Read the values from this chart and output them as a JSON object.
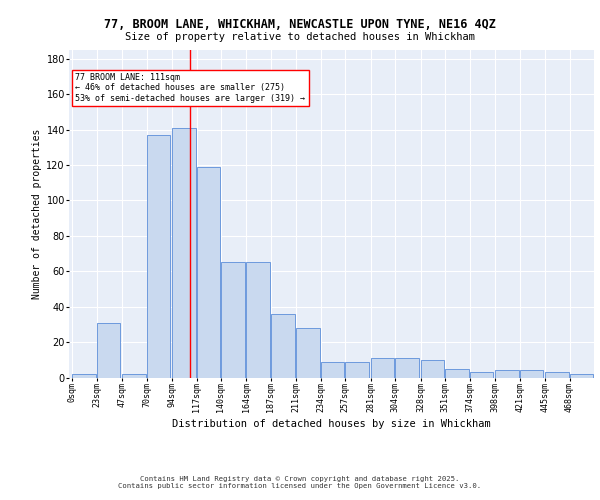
{
  "title1": "77, BROOM LANE, WHICKHAM, NEWCASTLE UPON TYNE, NE16 4QZ",
  "title2": "Size of property relative to detached houses in Whickham",
  "xlabel": "Distribution of detached houses by size in Whickham",
  "ylabel": "Number of detached properties",
  "bar_categories": [
    "0sqm",
    "23sqm",
    "47sqm",
    "70sqm",
    "94sqm",
    "117sqm",
    "140sqm",
    "164sqm",
    "187sqm",
    "211sqm",
    "234sqm",
    "257sqm",
    "281sqm",
    "304sqm",
    "328sqm",
    "351sqm",
    "374sqm",
    "398sqm",
    "421sqm",
    "445sqm",
    "468sqm"
  ],
  "actual_values": [
    2,
    31,
    2,
    137,
    141,
    119,
    65,
    65,
    36,
    28,
    9,
    9,
    11,
    11,
    10,
    5,
    3,
    4,
    4,
    3,
    2
  ],
  "bar_color": "#c9d9ef",
  "bar_edge_color": "#5b8dd9",
  "property_line_x": 111,
  "property_line_color": "red",
  "annotation_text": "77 BROOM LANE: 111sqm\n← 46% of detached houses are smaller (275)\n53% of semi-detached houses are larger (319) →",
  "annotation_box_color": "white",
  "annotation_box_edge_color": "red",
  "ylim": [
    0,
    185
  ],
  "yticks": [
    0,
    20,
    40,
    60,
    80,
    100,
    120,
    140,
    160,
    180
  ],
  "background_color": "#e8eef8",
  "grid_color": "white",
  "footer_line1": "Contains HM Land Registry data © Crown copyright and database right 2025.",
  "footer_line2": "Contains public sector information licensed under the Open Government Licence v3.0."
}
